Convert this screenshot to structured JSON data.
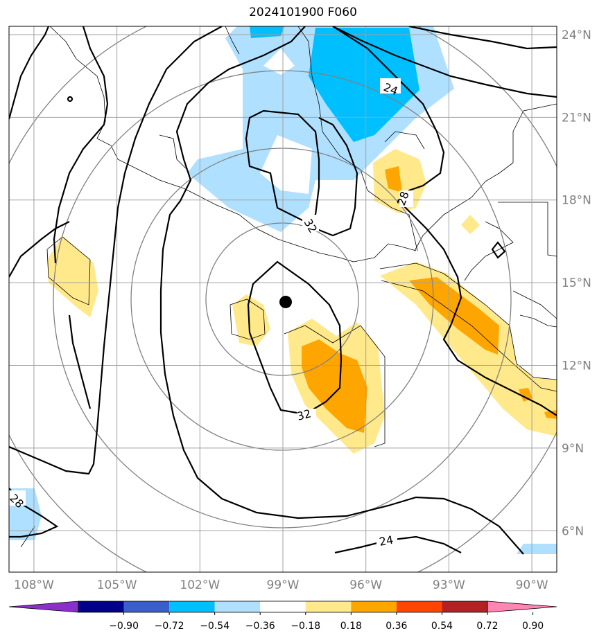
{
  "title": "2024101900 F060",
  "map": {
    "lat_range": [
      4.5,
      24.3
    ],
    "lon_range": [
      -108.9,
      -89.1
    ],
    "lat_ticks": [
      {
        "value": 24,
        "label": "24°N"
      },
      {
        "value": 21,
        "label": "21°N"
      },
      {
        "value": 18,
        "label": "18°N"
      },
      {
        "value": 15,
        "label": "15°N"
      },
      {
        "value": 12,
        "label": "12°N"
      },
      {
        "value": 9,
        "label": "9°N"
      },
      {
        "value": 6,
        "label": "6°N"
      }
    ],
    "lon_ticks": [
      {
        "value": -108,
        "label": "108°W"
      },
      {
        "value": -105,
        "label": "105°W"
      },
      {
        "value": -102,
        "label": "102°W"
      },
      {
        "value": -99,
        "label": "99°W"
      },
      {
        "value": -96,
        "label": "96°W"
      },
      {
        "value": -93,
        "label": "93°W"
      },
      {
        "value": -90,
        "label": "90°W"
      }
    ],
    "storm_center": {
      "lon": -98.9,
      "lat": 14.3
    },
    "contour_labels": [
      "24",
      "24",
      "28",
      "28",
      "32",
      "32"
    ]
  },
  "colorbar": {
    "colors": [
      "#8b2fc9",
      "#00008b",
      "#3a5fcd",
      "#00bfff",
      "#b0e0ff",
      "#ffffff",
      "#ffe98a",
      "#ffa500",
      "#ff4500",
      "#b22222",
      "#ff85b3"
    ],
    "tick_labels": [
      "−0.90",
      "−0.72",
      "−0.54",
      "−0.36",
      "−0.18",
      "0.18",
      "0.36",
      "0.54",
      "0.72",
      "0.90"
    ]
  }
}
